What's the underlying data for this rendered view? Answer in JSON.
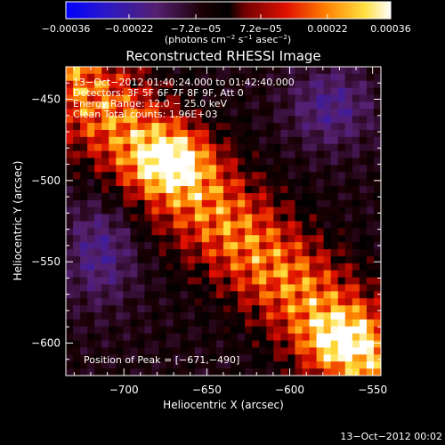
{
  "chart_data": {
    "type": "heatmap",
    "colorbar": {
      "ticks": [
        "−0.00036",
        "−0.00022",
        "−7.2e−05",
        "7.2e−05",
        "0.00022",
        "0.00036"
      ],
      "tick_values": [
        -0.00036,
        -0.00022,
        -7.2e-05,
        7.2e-05,
        0.00022,
        0.00036
      ],
      "range": [
        -0.00036,
        0.00036
      ],
      "units_label": "(photons cm",
      "units_label_parts": [
        "(photons cm",
        "−2",
        " s",
        "−1",
        " asec",
        "−2",
        ")"
      ]
    },
    "title": "Reconstructed RHESSI Image",
    "xlabel": "Heliocentric X (arcsec)",
    "ylabel": "Heliocentric Y (arcsec)",
    "xlim": [
      -735,
      -545
    ],
    "ylim": [
      -620,
      -430
    ],
    "x_ticks": [
      -700,
      -650,
      -600,
      -550
    ],
    "x_tick_labels": [
      "−700",
      "−650",
      "−600",
      "−550"
    ],
    "y_ticks": [
      -450,
      -500,
      -550,
      -600
    ],
    "y_tick_labels": [
      "−450",
      "−500",
      "−550",
      "−600"
    ],
    "annotations": [
      "13−Oct−2012 01:40:24.000 to 01:42:40.000",
      "Detectors: 3F 5F 6F 7F 8F 9F, Att 0",
      "Energy Range: 12.0 − 25.0 keV",
      "Clean     Total counts: 1.96E+03"
    ],
    "peak_label": "Position of Peak = [−671,−490]",
    "peak": [
      -671,
      -490
    ]
  },
  "footer": {
    "timestamp": "13−Oct−2012 00:02"
  }
}
